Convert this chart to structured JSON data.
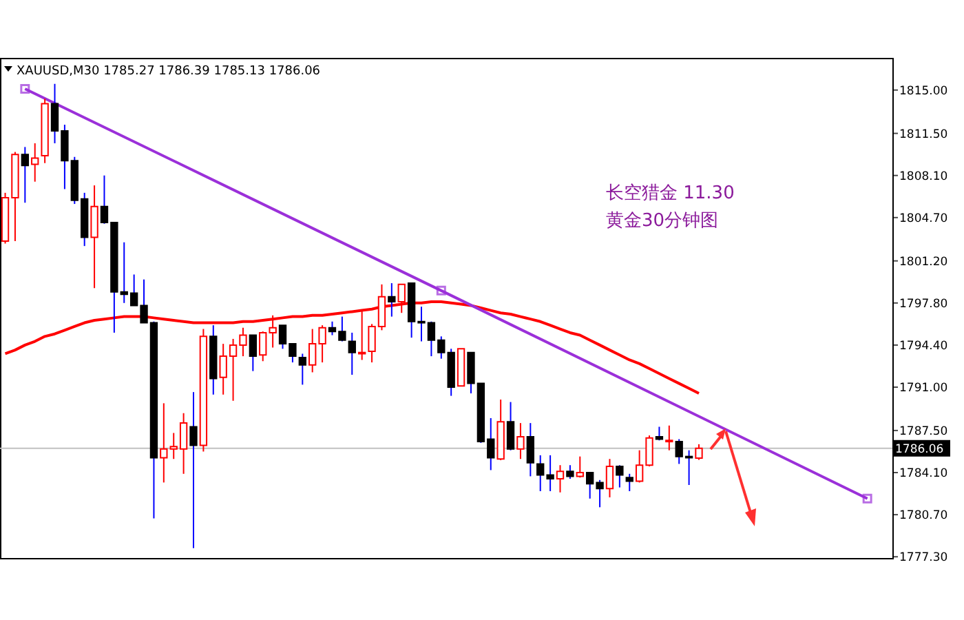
{
  "chart_data": {
    "type": "candlestick",
    "annotations": [
      "XAUUSD,M30  1785.27 1786.39 1785.13 1786.06",
      "长空猎金  11.30",
      "黄金30分钟图"
    ],
    "categories": [
      null,
      null,
      null,
      null,
      null,
      null,
      null,
      null,
      null,
      null,
      null,
      null,
      null,
      null,
      null,
      null,
      null,
      null,
      null,
      null,
      null,
      null,
      null,
      null,
      null,
      null,
      null,
      null,
      null,
      null,
      null,
      null,
      null,
      null,
      null,
      null,
      null,
      null,
      null,
      null,
      null,
      null,
      null,
      null,
      null,
      null,
      null,
      null,
      null,
      null,
      null,
      null,
      null,
      null,
      null,
      null,
      null,
      null,
      null,
      null,
      null,
      null,
      null,
      null,
      null,
      null,
      null,
      null,
      null,
      null,
      null,
      null,
      null,
      null,
      null,
      null,
      null,
      null,
      null,
      null,
      null,
      null,
      null,
      null,
      null,
      null,
      null,
      null,
      null,
      null
    ],
    "ohlc": [
      [
        1802.8,
        1806.7,
        1802.6,
        1806.3
      ],
      [
        1806.3,
        1810.0,
        1802.8,
        1809.8
      ],
      [
        1809.8,
        1810.4,
        1805.9,
        1808.9
      ],
      [
        1809.0,
        1810.7,
        1807.6,
        1809.5
      ],
      [
        1809.7,
        1814.3,
        1809.1,
        1813.9
      ],
      [
        1813.9,
        1815.5,
        1810.7,
        1811.7
      ],
      [
        1811.7,
        1812.2,
        1807.0,
        1809.3
      ],
      [
        1809.3,
        1809.6,
        1805.8,
        1806.1
      ],
      [
        1806.2,
        1806.7,
        1802.4,
        1803.1
      ],
      [
        1803.1,
        1807.3,
        1799.0,
        1805.6
      ],
      [
        1805.6,
        1808.1,
        1804.2,
        1804.3
      ],
      [
        1804.3,
        1804.3,
        1795.4,
        1798.7
      ],
      [
        1798.7,
        1802.7,
        1797.8,
        1798.5
      ],
      [
        1798.6,
        1800.1,
        1797.6,
        1797.6
      ],
      [
        1797.6,
        1799.7,
        1796.2,
        1796.2
      ],
      [
        1796.2,
        1796.3,
        1780.4,
        1785.3
      ],
      [
        1785.3,
        1789.7,
        1783.3,
        1786.0
      ],
      [
        1786.0,
        1787.3,
        1785.2,
        1786.2
      ],
      [
        1786.0,
        1788.9,
        1784.0,
        1788.1
      ],
      [
        1787.8,
        1790.6,
        1778.0,
        1786.3
      ],
      [
        1786.3,
        1795.7,
        1785.8,
        1795.1
      ],
      [
        1795.1,
        1796.0,
        1790.4,
        1791.7
      ],
      [
        1791.8,
        1794.5,
        1790.4,
        1793.5
      ],
      [
        1793.5,
        1794.9,
        1789.9,
        1794.4
      ],
      [
        1794.4,
        1795.8,
        1793.5,
        1795.2
      ],
      [
        1795.2,
        1795.2,
        1792.3,
        1793.5
      ],
      [
        1793.6,
        1795.5,
        1793.1,
        1795.4
      ],
      [
        1795.4,
        1796.8,
        1794.2,
        1795.8
      ],
      [
        1796.0,
        1796.0,
        1794.1,
        1794.5
      ],
      [
        1794.5,
        1794.5,
        1793.0,
        1793.5
      ],
      [
        1793.4,
        1793.7,
        1791.2,
        1792.8
      ],
      [
        1792.8,
        1795.7,
        1792.2,
        1794.5
      ],
      [
        1794.5,
        1796.0,
        1793.0,
        1795.8
      ],
      [
        1795.8,
        1796.3,
        1795.2,
        1795.5
      ],
      [
        1795.5,
        1796.7,
        1794.7,
        1794.8
      ],
      [
        1794.7,
        1795.4,
        1792.0,
        1793.8
      ],
      [
        1793.7,
        1797.2,
        1793.2,
        1793.8
      ],
      [
        1793.9,
        1796.1,
        1793.0,
        1795.9
      ],
      [
        1795.9,
        1799.3,
        1795.6,
        1798.3
      ],
      [
        1798.3,
        1799.4,
        1796.7,
        1797.9
      ],
      [
        1797.9,
        1799.3,
        1797.0,
        1799.3
      ],
      [
        1799.4,
        1799.4,
        1795.0,
        1796.3
      ],
      [
        1796.3,
        1797.5,
        1794.7,
        1796.2
      ],
      [
        1796.2,
        1796.3,
        1793.5,
        1794.8
      ],
      [
        1794.8,
        1795.1,
        1793.3,
        1793.8
      ],
      [
        1793.8,
        1794.1,
        1790.3,
        1791.0
      ],
      [
        1791.1,
        1794.1,
        1791.1,
        1794.1
      ],
      [
        1793.8,
        1793.8,
        1790.5,
        1791.3
      ],
      [
        1791.3,
        1791.3,
        1786.5,
        1786.6
      ],
      [
        1786.8,
        1788.5,
        1784.3,
        1785.3
      ],
      [
        1785.2,
        1790.0,
        1785.1,
        1788.2
      ],
      [
        1788.2,
        1789.8,
        1785.9,
        1786.0
      ],
      [
        1786.0,
        1788.1,
        1785.2,
        1787.0
      ],
      [
        1787.0,
        1788.1,
        1783.8,
        1784.9
      ],
      [
        1784.8,
        1785.5,
        1782.6,
        1783.9
      ],
      [
        1783.9,
        1785.5,
        1782.6,
        1783.6
      ],
      [
        1783.6,
        1784.7,
        1782.5,
        1784.2
      ],
      [
        1784.2,
        1784.7,
        1783.6,
        1783.8
      ],
      [
        1783.8,
        1785.4,
        1783.7,
        1784.1
      ],
      [
        1784.1,
        1784.1,
        1782.0,
        1783.2
      ],
      [
        1783.3,
        1783.5,
        1781.3,
        1782.8
      ],
      [
        1782.8,
        1785.2,
        1782.1,
        1784.6
      ],
      [
        1784.6,
        1784.7,
        1782.9,
        1783.9
      ],
      [
        1783.7,
        1784.0,
        1782.6,
        1783.4
      ],
      [
        1783.4,
        1785.9,
        1783.3,
        1784.7
      ],
      [
        1784.7,
        1787.1,
        1784.6,
        1786.9
      ],
      [
        1787.0,
        1787.8,
        1786.7,
        1786.8
      ],
      [
        1786.6,
        1787.9,
        1785.9,
        1786.7
      ],
      [
        1786.6,
        1786.8,
        1784.8,
        1785.4
      ],
      [
        1785.4,
        1785.9,
        1783.1,
        1785.3
      ],
      [
        1785.27,
        1786.39,
        1785.13,
        1786.06
      ],
      null,
      null,
      null,
      null,
      null,
      null,
      null,
      null,
      null,
      null,
      null,
      null,
      null,
      null,
      null,
      null,
      null,
      null,
      null
    ],
    "series": [
      {
        "type": "line",
        "color": "#ff0000",
        "values": [
          1793.7,
          1794.0,
          1794.4,
          1794.7,
          1795.1,
          1795.3,
          1795.6,
          1795.9,
          1796.2,
          1796.4,
          1796.5,
          1796.6,
          1796.7,
          1796.7,
          1796.7,
          1796.6,
          1796.5,
          1796.4,
          1796.3,
          1796.2,
          1796.2,
          1796.2,
          1796.2,
          1796.2,
          1796.3,
          1796.3,
          1796.4,
          1796.5,
          1796.6,
          1796.7,
          1796.7,
          1796.8,
          1796.8,
          1796.9,
          1797.0,
          1797.1,
          1797.2,
          1797.3,
          1797.5,
          1797.6,
          1797.7,
          1797.8,
          1797.8,
          1797.9,
          1797.9,
          1797.8,
          1797.7,
          1797.6,
          1797.4,
          1797.2,
          1797.0,
          1796.9,
          1796.7,
          1796.5,
          1796.3,
          1796.0,
          1795.7,
          1795.4,
          1795.2,
          1794.8,
          1794.4,
          1794.0,
          1793.6,
          1793.2,
          1792.9,
          1792.5,
          1792.1,
          1791.7,
          1791.3,
          1790.9,
          1790.5,
          null,
          null,
          null,
          null,
          null,
          null,
          null,
          null,
          null,
          null,
          null,
          null,
          null,
          null,
          null,
          null,
          null,
          null,
          null
        ]
      },
      {
        "type": "line",
        "color": "#9b30d9",
        "marker": "square",
        "values": [
          null,
          null,
          1815.1,
          null,
          null,
          null,
          null,
          null,
          null,
          null,
          null,
          null,
          null,
          null,
          null,
          null,
          null,
          null,
          null,
          null,
          null,
          null,
          null,
          null,
          null,
          null,
          null,
          null,
          null,
          null,
          null,
          null,
          null,
          null,
          null,
          null,
          null,
          null,
          null,
          null,
          null,
          null,
          null,
          null,
          1798.8,
          null,
          null,
          null,
          null,
          null,
          null,
          null,
          null,
          null,
          null,
          null,
          null,
          null,
          null,
          null,
          null,
          null,
          null,
          null,
          null,
          null,
          null,
          null,
          null,
          null,
          null,
          null,
          null,
          null,
          null,
          null,
          null,
          null,
          null,
          null,
          null,
          null,
          null,
          null,
          null,
          null,
          null,
          1782.0,
          null,
          null
        ]
      }
    ],
    "ylim": [
      1777.2,
      1817.6
    ],
    "yticks": [
      {
        "value": 1777.3,
        "label": "1777.30"
      },
      {
        "value": 1780.7,
        "label": "1780.70"
      },
      {
        "value": 1784.1,
        "label": "1784.10"
      },
      {
        "value": 1787.5,
        "label": "1787.50"
      },
      {
        "value": 1791.0,
        "label": "1791.00"
      },
      {
        "value": 1794.4,
        "label": "1794.40"
      },
      {
        "value": 1797.8,
        "label": "1797.80"
      },
      {
        "value": 1801.2,
        "label": "1801.20"
      },
      {
        "value": 1804.7,
        "label": "1804.70"
      },
      {
        "value": 1808.1,
        "label": "1808.10"
      },
      {
        "value": 1811.5,
        "label": "1811.50"
      },
      {
        "value": 1815.0,
        "label": "1815.00"
      }
    ],
    "ref_lines": [
      {
        "axis": "y",
        "value": 1786.06,
        "label": "1786.06",
        "color": "#c0c0c0"
      }
    ],
    "tick_labels": "y",
    "grid": false,
    "legend": false
  }
}
